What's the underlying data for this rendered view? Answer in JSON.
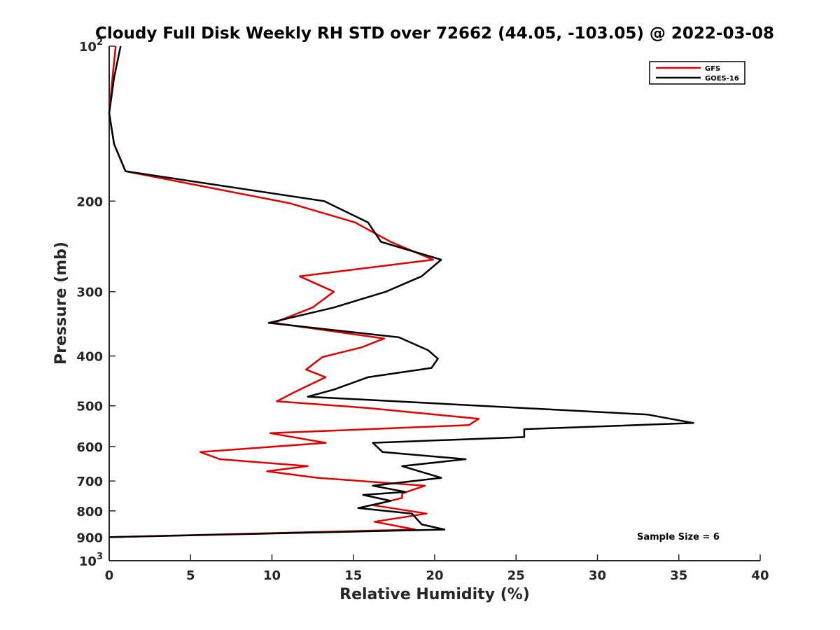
{
  "chart_data": {
    "type": "line",
    "title": "Cloudy Full Disk Weekly RH STD over 72662 (44.05, -103.05) @ 2022-03-08",
    "xlabel": "Relative Humidity (%)",
    "ylabel": "Pressure (mb)",
    "xlim": [
      0,
      40
    ],
    "ylim": [
      100,
      1000
    ],
    "y_scale": "log",
    "y_reversed": true,
    "x_ticks": [
      0,
      5,
      10,
      15,
      20,
      25,
      30,
      35,
      40
    ],
    "x_tick_labels": [
      "0",
      "5",
      "10",
      "15",
      "20",
      "25",
      "30",
      "35",
      "40"
    ],
    "y_ticks": [
      100,
      200,
      300,
      400,
      500,
      600,
      700,
      800,
      900,
      1000
    ],
    "y_tick_labels": [
      {
        "base": "10",
        "exp": "2"
      },
      {
        "base": "200",
        "exp": ""
      },
      {
        "base": "300",
        "exp": ""
      },
      {
        "base": "400",
        "exp": ""
      },
      {
        "base": "500",
        "exp": ""
      },
      {
        "base": "600",
        "exp": ""
      },
      {
        "base": "700",
        "exp": ""
      },
      {
        "base": "800",
        "exp": ""
      },
      {
        "base": "900",
        "exp": ""
      },
      {
        "base": "10",
        "exp": "3"
      }
    ],
    "grid": false,
    "legend_position": "top-right",
    "annotation": "Sample Size = 6",
    "series": [
      {
        "name": "GFS",
        "color": "#e00000",
        "points": [
          [
            0.4,
            100
          ],
          [
            0.2,
            115
          ],
          [
            0.0,
            135
          ],
          [
            0.3,
            155
          ],
          [
            1.0,
            175
          ],
          [
            11.1,
            202
          ],
          [
            15.1,
            220
          ],
          [
            17.3,
            240
          ],
          [
            19.9,
            260
          ],
          [
            11.7,
            280
          ],
          [
            13.8,
            300
          ],
          [
            12.5,
            322
          ],
          [
            10.1,
            345
          ],
          [
            16.9,
            370
          ],
          [
            15.5,
            385
          ],
          [
            13.1,
            402
          ],
          [
            12.1,
            425
          ],
          [
            13.3,
            440
          ],
          [
            11.4,
            470
          ],
          [
            10.3,
            490
          ],
          [
            15.9,
            505
          ],
          [
            22.7,
            530
          ],
          [
            22.1,
            545
          ],
          [
            9.9,
            565
          ],
          [
            13.3,
            590
          ],
          [
            5.6,
            615
          ],
          [
            6.8,
            635
          ],
          [
            12.2,
            655
          ],
          [
            9.7,
            670
          ],
          [
            12.8,
            690
          ],
          [
            19.4,
            715
          ],
          [
            18.0,
            740
          ],
          [
            18.0,
            755
          ],
          [
            16.2,
            780
          ],
          [
            19.5,
            810
          ],
          [
            16.3,
            840
          ],
          [
            18.8,
            870
          ],
          [
            0.0,
            900
          ]
        ]
      },
      {
        "name": "GOES-16",
        "color": "#000000",
        "points": [
          [
            0.7,
            100
          ],
          [
            0.3,
            115
          ],
          [
            0.0,
            135
          ],
          [
            0.3,
            155
          ],
          [
            1.0,
            175
          ],
          [
            13.2,
            200
          ],
          [
            15.9,
            220
          ],
          [
            16.7,
            240
          ],
          [
            20.4,
            260
          ],
          [
            19.2,
            280
          ],
          [
            17.0,
            300
          ],
          [
            13.8,
            322
          ],
          [
            9.8,
            345
          ],
          [
            17.8,
            368
          ],
          [
            19.6,
            390
          ],
          [
            20.2,
            405
          ],
          [
            19.8,
            422
          ],
          [
            15.9,
            440
          ],
          [
            13.8,
            465
          ],
          [
            12.2,
            480
          ],
          [
            33.1,
            520
          ],
          [
            35.9,
            540
          ],
          [
            25.5,
            555
          ],
          [
            25.5,
            575
          ],
          [
            16.2,
            590
          ],
          [
            16.8,
            615
          ],
          [
            21.9,
            635
          ],
          [
            18.0,
            655
          ],
          [
            20.4,
            690
          ],
          [
            16.2,
            715
          ],
          [
            18.2,
            735
          ],
          [
            15.6,
            745
          ],
          [
            17.3,
            765
          ],
          [
            15.3,
            790
          ],
          [
            18.6,
            810
          ],
          [
            19.2,
            850
          ],
          [
            20.6,
            870
          ],
          [
            0.0,
            900
          ]
        ]
      }
    ]
  }
}
